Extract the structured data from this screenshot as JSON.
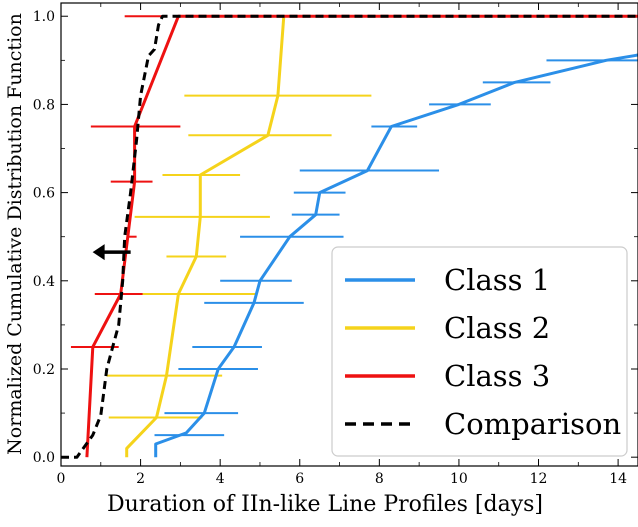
{
  "chart_data": {
    "type": "line",
    "title": "",
    "xlabel": "Duration of IIn-like Line Profiles [days]",
    "ylabel": "Normalized Cumulative Distribution Function",
    "xlim": [
      0,
      14.5
    ],
    "ylim": [
      -0.02,
      1.03
    ],
    "xticks": [
      0,
      2,
      4,
      6,
      8,
      10,
      12,
      14
    ],
    "yticks": [
      0.0,
      0.2,
      0.4,
      0.6,
      0.8,
      1.0
    ],
    "xtick_labels": [
      "0",
      "2",
      "4",
      "6",
      "8",
      "10",
      "12",
      "14"
    ],
    "ytick_labels": [
      "0.0",
      "0.2",
      "0.4",
      "0.6",
      "0.8",
      "1.0"
    ],
    "legend_position": "lower-right",
    "annotations": [
      {
        "kind": "left-arrow",
        "meaning": "upper limit",
        "x": 1.75,
        "y": 0.465
      }
    ],
    "series": [
      {
        "name": "Class 1",
        "color": "#2b8fe8",
        "style": "solid",
        "points": [
          [
            2.38,
            0.0
          ],
          [
            2.38,
            0.03
          ],
          [
            3.15,
            0.055
          ],
          [
            3.6,
            0.1
          ],
          [
            3.95,
            0.2
          ],
          [
            4.35,
            0.25
          ],
          [
            4.85,
            0.35
          ],
          [
            5.0,
            0.4
          ],
          [
            5.75,
            0.5
          ],
          [
            6.4,
            0.55
          ],
          [
            6.5,
            0.6
          ],
          [
            7.7,
            0.65
          ],
          [
            8.3,
            0.75
          ],
          [
            10.0,
            0.8
          ],
          [
            11.4,
            0.85
          ],
          [
            13.7,
            0.9
          ],
          [
            14.5,
            0.912
          ]
        ],
        "error_bars": [
          {
            "y": 0.05,
            "xmin": 2.35,
            "xmax": 4.1
          },
          {
            "y": 0.1,
            "xmin": 2.6,
            "xmax": 4.45
          },
          {
            "y": 0.2,
            "xmin": 2.95,
            "xmax": 4.95
          },
          {
            "y": 0.25,
            "xmin": 3.3,
            "xmax": 5.05
          },
          {
            "y": 0.35,
            "xmin": 3.6,
            "xmax": 6.1
          },
          {
            "y": 0.4,
            "xmin": 4.0,
            "xmax": 5.8
          },
          {
            "y": 0.5,
            "xmin": 4.5,
            "xmax": 7.1
          },
          {
            "y": 0.55,
            "xmin": 5.8,
            "xmax": 7.0
          },
          {
            "y": 0.6,
            "xmin": 5.85,
            "xmax": 7.15
          },
          {
            "y": 0.65,
            "xmin": 6.0,
            "xmax": 9.5
          },
          {
            "y": 0.75,
            "xmin": 7.8,
            "xmax": 8.95
          },
          {
            "y": 0.8,
            "xmin": 9.25,
            "xmax": 10.8
          },
          {
            "y": 0.85,
            "xmin": 10.6,
            "xmax": 12.3
          },
          {
            "y": 0.9,
            "xmin": 12.2,
            "xmax": 15.0
          }
        ]
      },
      {
        "name": "Class 2",
        "color": "#f5d31b",
        "style": "solid",
        "points": [
          [
            1.65,
            0.0
          ],
          [
            1.65,
            0.02
          ],
          [
            2.4,
            0.09
          ],
          [
            2.65,
            0.185
          ],
          [
            2.95,
            0.37
          ],
          [
            3.4,
            0.455
          ],
          [
            3.5,
            0.545
          ],
          [
            3.5,
            0.64
          ],
          [
            5.2,
            0.73
          ],
          [
            5.45,
            0.82
          ],
          [
            5.6,
            1.0
          ]
        ],
        "error_bars": [
          {
            "y": 0.09,
            "xmin": 1.2,
            "xmax": 3.55
          },
          {
            "y": 0.185,
            "xmin": 1.15,
            "xmax": 4.05
          },
          {
            "y": 0.37,
            "xmin": 0.85,
            "xmax": 4.9
          },
          {
            "y": 0.455,
            "xmin": 2.65,
            "xmax": 4.15
          },
          {
            "y": 0.545,
            "xmin": 1.85,
            "xmax": 5.25
          },
          {
            "y": 0.64,
            "xmin": 2.55,
            "xmax": 4.5
          },
          {
            "y": 0.73,
            "xmin": 3.2,
            "xmax": 6.8
          },
          {
            "y": 0.82,
            "xmin": 3.1,
            "xmax": 7.8
          }
        ]
      },
      {
        "name": "Class 3",
        "color": "#ee1111",
        "style": "solid",
        "points": [
          [
            0.65,
            0.0
          ],
          [
            0.8,
            0.25
          ],
          [
            1.5,
            0.37
          ],
          [
            1.85,
            0.625
          ],
          [
            1.85,
            0.75
          ],
          [
            2.95,
            1.0
          ],
          [
            14.5,
            1.0
          ]
        ],
        "error_bars": [
          {
            "y": 0.25,
            "xmin": 0.25,
            "xmax": 1.45
          },
          {
            "y": 0.37,
            "xmin": 0.85,
            "xmax": 2.05
          },
          {
            "y": 0.5,
            "xmin": 1.7,
            "xmax": 1.9
          },
          {
            "y": 0.625,
            "xmin": 1.25,
            "xmax": 2.3
          },
          {
            "y": 0.75,
            "xmin": 0.75,
            "xmax": 3.0
          },
          {
            "y": 1.0,
            "xmin": 1.6,
            "xmax": 2.55
          }
        ]
      },
      {
        "name": "Comparison",
        "color": "#000000",
        "style": "dashed",
        "points": [
          [
            0.0,
            0.0
          ],
          [
            0.4,
            0.0
          ],
          [
            0.8,
            0.05
          ],
          [
            1.0,
            0.095
          ],
          [
            1.15,
            0.2
          ],
          [
            1.3,
            0.25
          ],
          [
            1.45,
            0.3
          ],
          [
            1.55,
            0.4
          ],
          [
            1.6,
            0.5
          ],
          [
            1.75,
            0.6
          ],
          [
            1.9,
            0.72
          ],
          [
            2.0,
            0.82
          ],
          [
            2.2,
            0.91
          ],
          [
            2.35,
            0.925
          ],
          [
            2.45,
            0.98
          ],
          [
            2.55,
            1.0
          ],
          [
            14.5,
            1.0
          ]
        ]
      }
    ]
  }
}
